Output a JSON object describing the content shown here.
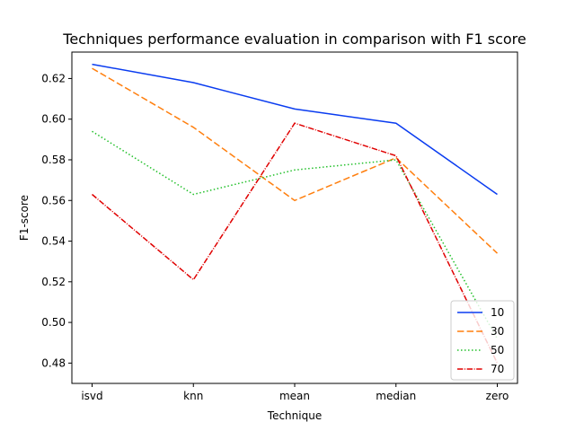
{
  "chart_data": {
    "type": "line",
    "title": "Techniques performance evaluation in comparison with F1 score",
    "xlabel": "Technique",
    "ylabel": "F1-score",
    "categories": [
      "isvd",
      "knn",
      "mean",
      "median",
      "zero"
    ],
    "ylim": [
      0.47,
      0.633
    ],
    "yticks": [
      "0.48",
      "0.50",
      "0.52",
      "0.54",
      "0.56",
      "0.58",
      "0.60",
      "0.62"
    ],
    "grid": false,
    "legend_position": "bottom-right",
    "series": [
      {
        "name": "10",
        "color": "#0a3cf0",
        "dash": "solid",
        "values": [
          0.627,
          0.618,
          0.605,
          0.598,
          0.563
        ]
      },
      {
        "name": "30",
        "color": "#ff7f0e",
        "dash": "dashed",
        "values": [
          0.625,
          0.596,
          0.56,
          0.581,
          0.534
        ]
      },
      {
        "name": "50",
        "color": "#22c02a",
        "dash": "dotted",
        "values": [
          0.594,
          0.563,
          0.575,
          0.58,
          0.492
        ]
      },
      {
        "name": "70",
        "color": "#e00000",
        "dash": "dashdot",
        "values": [
          0.563,
          0.521,
          0.598,
          0.582,
          0.48
        ]
      }
    ]
  }
}
